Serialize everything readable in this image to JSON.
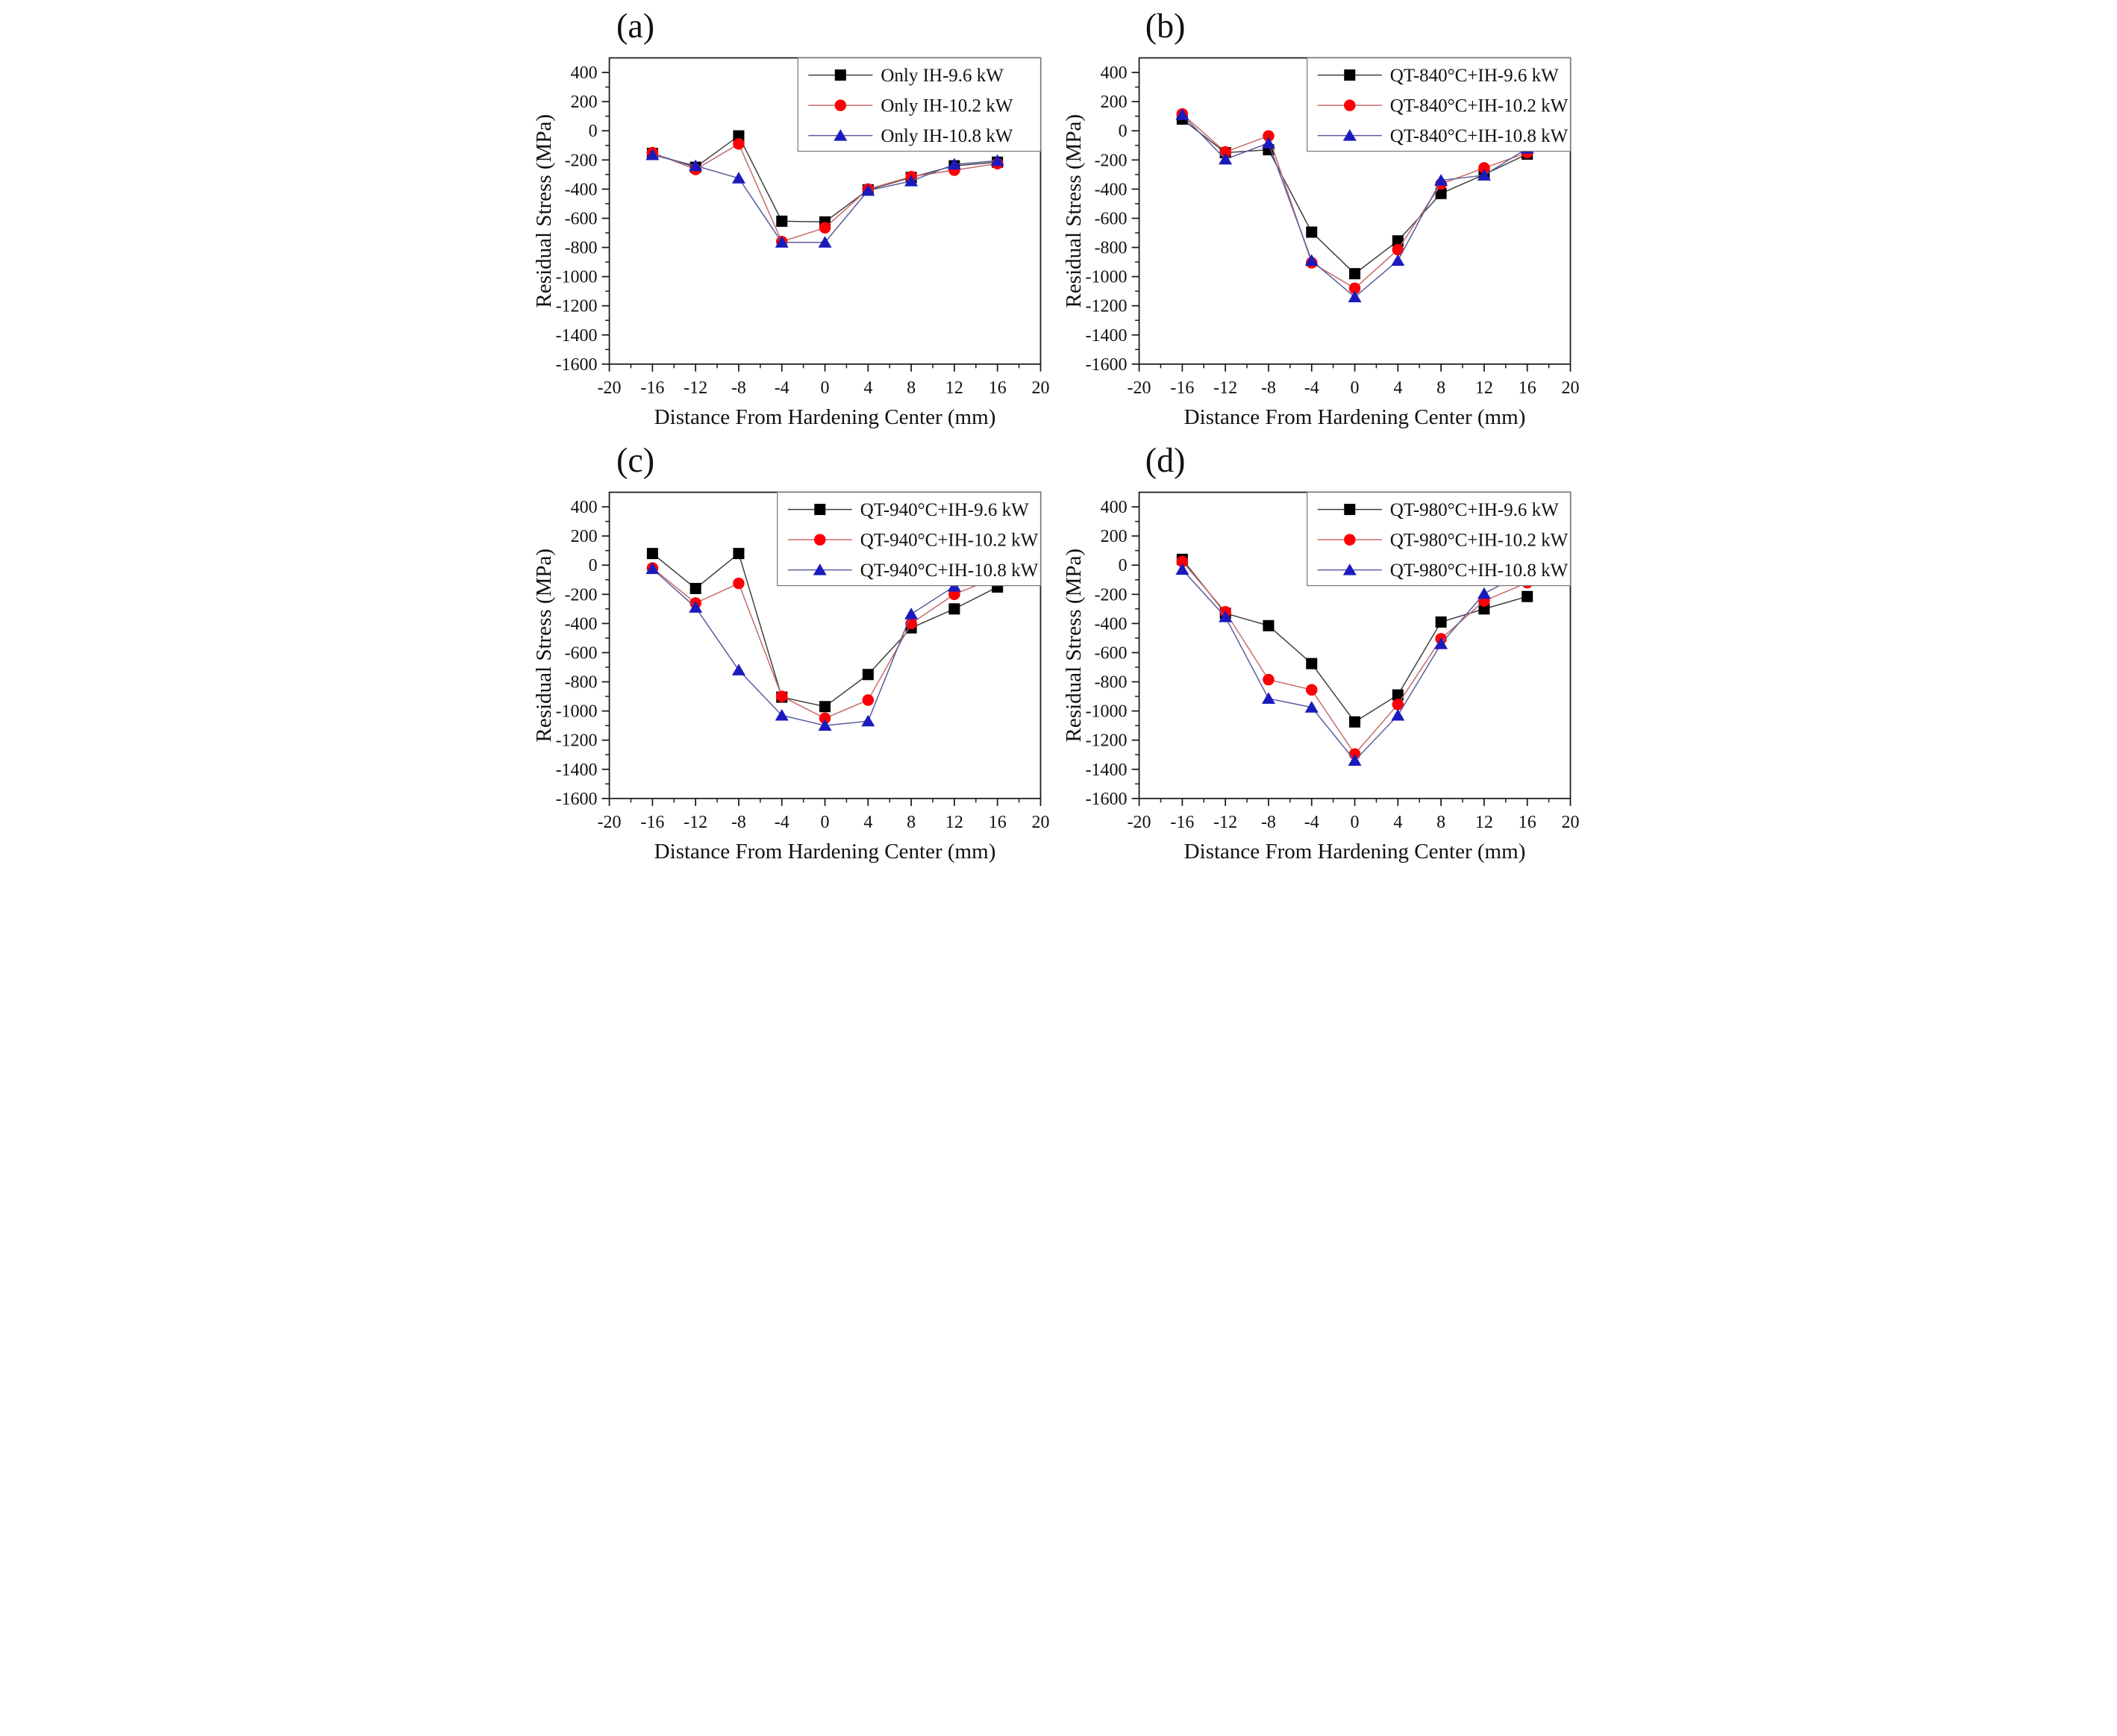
{
  "figure": {
    "xlabel": "Distance From Hardening Center (mm)",
    "ylabel": "Residual Stress (MPa)",
    "background_color": "#ffffff",
    "frame_color": "#1a1a1a",
    "series_colors": {
      "black": "#000000",
      "red": "#fb0006",
      "blue": "#1b1bbd"
    }
  },
  "chart_data": [
    {
      "type": "line",
      "panel_label": "(a)",
      "xlabel": "Distance From Hardening Center (mm)",
      "ylabel": "Residual Stress (MPa)",
      "xlim": [
        -20,
        20
      ],
      "ylim": [
        -1600,
        500
      ],
      "x_ticks": [
        -20,
        -16,
        -12,
        -8,
        -4,
        0,
        4,
        8,
        12,
        16,
        20
      ],
      "y_ticks": [
        400,
        200,
        0,
        -200,
        -400,
        -600,
        -800,
        -1000,
        -1200,
        -1400,
        -1600
      ],
      "grid": false,
      "legend_position": "top-right",
      "x": [
        -16,
        -12,
        -8,
        -4,
        0,
        4,
        8,
        12,
        16
      ],
      "series": [
        {
          "name": "Only IH-9.6 kW",
          "marker": "square",
          "marker_color": "#000000",
          "line_color": "#3f3f3f",
          "values": [
            -155,
            -250,
            -35,
            -620,
            -625,
            -405,
            -320,
            -240,
            -215
          ]
        },
        {
          "name": "Only IH-10.2 kW",
          "marker": "circle",
          "marker_color": "#fb0006",
          "line_color": "#c96a6a",
          "values": [
            -150,
            -265,
            -90,
            -760,
            -665,
            -400,
            -315,
            -270,
            -225
          ]
        },
        {
          "name": "Only IH-10.8 kW",
          "marker": "triangle",
          "marker_color": "#1b1bbd",
          "line_color": "#5d5d9e",
          "values": [
            -165,
            -240,
            -325,
            -765,
            -765,
            -410,
            -345,
            -230,
            -205
          ]
        }
      ]
    },
    {
      "type": "line",
      "panel_label": "(b)",
      "xlabel": "Distance From Hardening Center (mm)",
      "ylabel": "Residual Stress (MPa)",
      "xlim": [
        -20,
        20
      ],
      "ylim": [
        -1600,
        500
      ],
      "x_ticks": [
        -20,
        -16,
        -12,
        -8,
        -4,
        0,
        4,
        8,
        12,
        16,
        20
      ],
      "y_ticks": [
        400,
        200,
        0,
        -200,
        -400,
        -600,
        -800,
        -1000,
        -1200,
        -1400,
        -1600
      ],
      "grid": false,
      "legend_position": "top-right",
      "x": [
        -16,
        -12,
        -8,
        -4,
        0,
        4,
        8,
        12,
        16
      ],
      "series": [
        {
          "name": "QT-840°C+IH-9.6 kW",
          "marker": "square",
          "marker_color": "#000000",
          "line_color": "#3f3f3f",
          "values": [
            80,
            -150,
            -130,
            -695,
            -980,
            -755,
            -430,
            -300,
            -160
          ]
        },
        {
          "name": "QT-840°C+IH-10.2 kW",
          "marker": "circle",
          "marker_color": "#fb0006",
          "line_color": "#c96a6a",
          "values": [
            115,
            -145,
            -35,
            -905,
            -1080,
            -815,
            -365,
            -255,
            -150
          ]
        },
        {
          "name": "QT-840°C+IH-10.8 kW",
          "marker": "triangle",
          "marker_color": "#1b1bbd",
          "line_color": "#5d5d9e",
          "values": [
            110,
            -195,
            -85,
            -890,
            -1140,
            -890,
            -340,
            -305,
            -120
          ]
        }
      ]
    },
    {
      "type": "line",
      "panel_label": "(c)",
      "xlabel": "Distance From Hardening Center (mm)",
      "ylabel": "Residual Stress (MPa)",
      "xlim": [
        -20,
        20
      ],
      "ylim": [
        -1600,
        500
      ],
      "x_ticks": [
        -20,
        -16,
        -12,
        -8,
        -4,
        0,
        4,
        8,
        12,
        16,
        20
      ],
      "y_ticks": [
        400,
        200,
        0,
        -200,
        -400,
        -600,
        -800,
        -1000,
        -1200,
        -1400,
        -1600
      ],
      "grid": false,
      "legend_position": "top-right",
      "x": [
        -16,
        -12,
        -8,
        -4,
        0,
        4,
        8,
        12,
        16
      ],
      "series": [
        {
          "name": "QT-940°C+IH-9.6 kW",
          "marker": "square",
          "marker_color": "#000000",
          "line_color": "#3f3f3f",
          "values": [
            80,
            -160,
            80,
            -905,
            -970,
            -750,
            -430,
            -300,
            -150
          ]
        },
        {
          "name": "QT-940°C+IH-10.2 kW",
          "marker": "circle",
          "marker_color": "#fb0006",
          "line_color": "#c96a6a",
          "values": [
            -20,
            -260,
            -125,
            -900,
            -1050,
            -925,
            -400,
            -200,
            -80
          ]
        },
        {
          "name": "QT-940°C+IH-10.8 kW",
          "marker": "triangle",
          "marker_color": "#1b1bbd",
          "line_color": "#5d5d9e",
          "values": [
            -25,
            -290,
            -720,
            -1030,
            -1100,
            -1070,
            -335,
            -145,
            -65
          ]
        }
      ]
    },
    {
      "type": "line",
      "panel_label": "(d)",
      "xlabel": "Distance From Hardening Center (mm)",
      "ylabel": "Residual Stress (MPa)",
      "xlim": [
        -20,
        20
      ],
      "ylim": [
        -1600,
        500
      ],
      "x_ticks": [
        -20,
        -16,
        -12,
        -8,
        -4,
        0,
        4,
        8,
        12,
        16,
        20
      ],
      "y_ticks": [
        400,
        200,
        0,
        -200,
        -400,
        -600,
        -800,
        -1000,
        -1200,
        -1400,
        -1600
      ],
      "grid": false,
      "legend_position": "top-right",
      "x": [
        -16,
        -12,
        -8,
        -4,
        0,
        4,
        8,
        12,
        16
      ],
      "series": [
        {
          "name": "QT-980°C+IH-9.6 kW",
          "marker": "square",
          "marker_color": "#000000",
          "line_color": "#3f3f3f",
          "values": [
            40,
            -330,
            -415,
            -675,
            -1075,
            -890,
            -390,
            -300,
            -215
          ]
        },
        {
          "name": "QT-980°C+IH-10.2 kW",
          "marker": "circle",
          "marker_color": "#fb0006",
          "line_color": "#c96a6a",
          "values": [
            25,
            -320,
            -785,
            -855,
            -1295,
            -955,
            -505,
            -245,
            -120
          ]
        },
        {
          "name": "QT-980°C+IH-10.8 kW",
          "marker": "triangle",
          "marker_color": "#1b1bbd",
          "line_color": "#5d5d9e",
          "values": [
            -30,
            -355,
            -915,
            -975,
            -1340,
            -1030,
            -540,
            -195,
            -40
          ]
        }
      ]
    }
  ]
}
